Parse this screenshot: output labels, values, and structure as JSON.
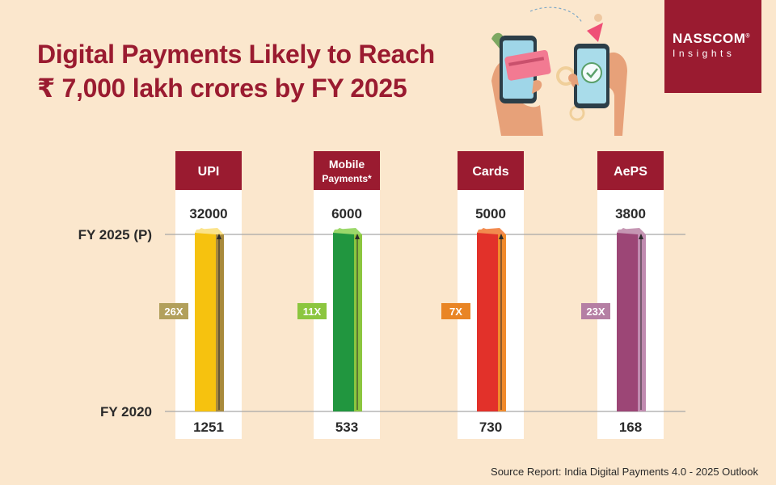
{
  "title": {
    "line1": "Digital Payments Likely to Reach",
    "line2": "₹ 7,000 lakh crores by FY 2025"
  },
  "logo": {
    "name": "NASSCOM",
    "mark": "®",
    "sub": "Insights"
  },
  "illustration": "hands-holding-phones-with-card-and-checkmark-icon",
  "source": "Source Report: India Digital Payments 4.0 - 2025 Outlook",
  "chart_data": {
    "type": "bar",
    "title": "",
    "row_labels": [
      "FY 2025 (P)",
      "FY 2020"
    ],
    "categories": [
      "UPI",
      "Mobile Payments*",
      "Cards",
      "AePS"
    ],
    "series": [
      {
        "name": "FY 2020",
        "values": [
          1251,
          533,
          730,
          168
        ]
      },
      {
        "name": "FY 2025 (P)",
        "values": [
          32000,
          6000,
          5000,
          3800
        ]
      }
    ],
    "growth_labels": [
      "26X",
      "11X",
      "7X",
      "23X"
    ],
    "colors": {
      "header": "#9a1b30",
      "bars": [
        "#f6c20f",
        "#21963f",
        "#e2312a",
        "#9c4676"
      ],
      "bars_top": [
        "#fbe38a",
        "#9bd86a",
        "#f28a4e",
        "#c596b3"
      ],
      "bars_side": [
        "#a88a3c",
        "#8cc63f",
        "#f08a2c",
        "#c08bb0"
      ],
      "labels": [
        "#b2a05c",
        "#8cc63f",
        "#e98525",
        "#b57fa4"
      ]
    }
  }
}
